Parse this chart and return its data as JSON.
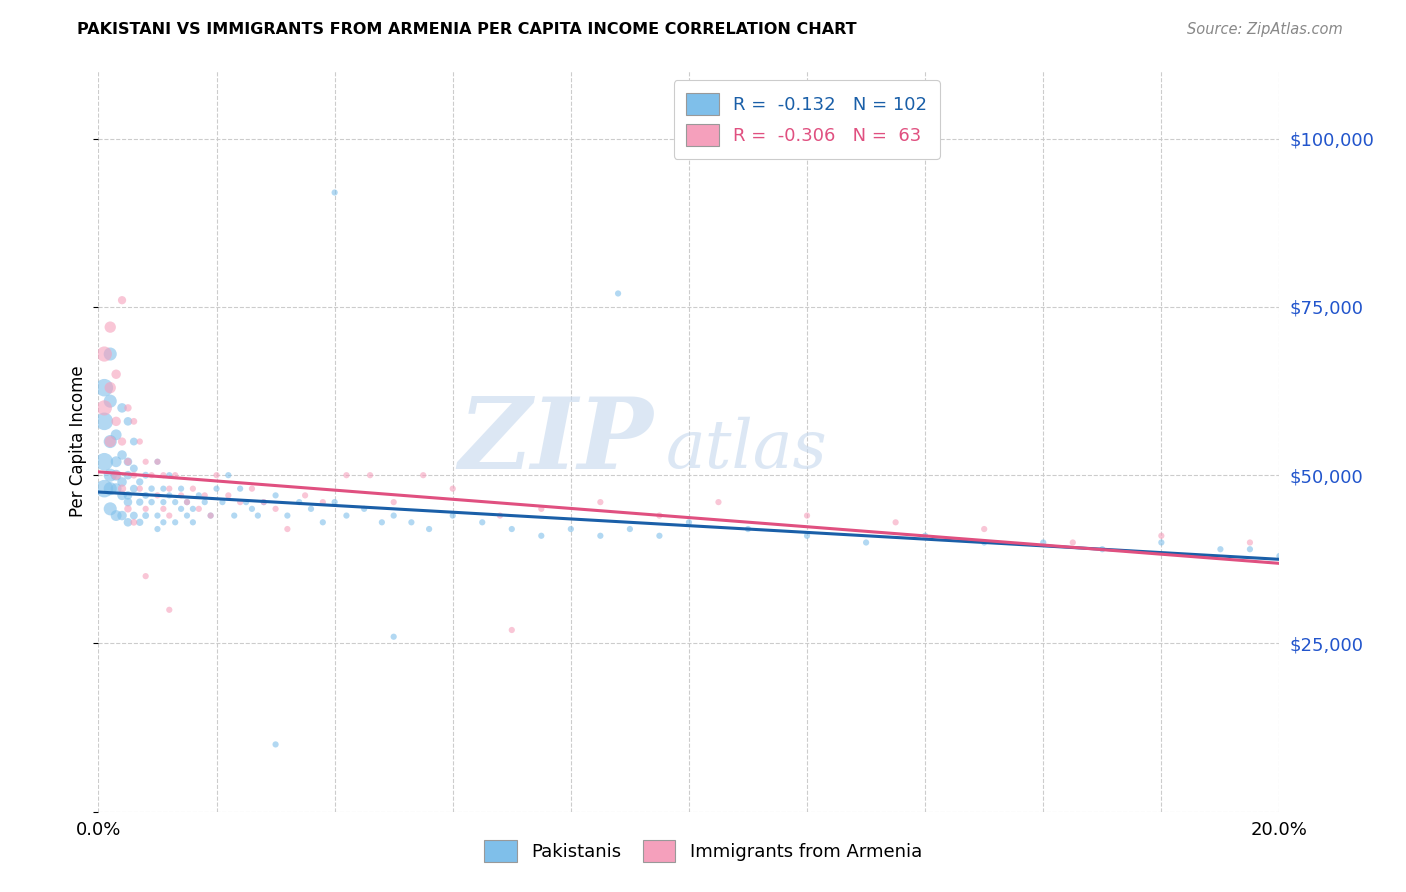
{
  "title": "PAKISTANI VS IMMIGRANTS FROM ARMENIA PER CAPITA INCOME CORRELATION CHART",
  "source": "Source: ZipAtlas.com",
  "ylabel": "Per Capita Income",
  "yticks": [
    0,
    25000,
    50000,
    75000,
    100000
  ],
  "ytick_labels": [
    "",
    "$25,000",
    "$50,000",
    "$75,000",
    "$100,000"
  ],
  "ylim": [
    0,
    110000
  ],
  "xlim": [
    0.0,
    0.2
  ],
  "color_blue": "#7fbfea",
  "color_pink": "#f5a0bc",
  "trendline_blue": "#1a5fa8",
  "trendline_pink": "#e05080",
  "watermark_zip": "ZIP",
  "watermark_atlas": "atlas",
  "R_pak": -0.132,
  "N_pak": 102,
  "R_arm": -0.306,
  "N_arm": 63,
  "pak_intercept": 47500,
  "pak_slope": -50000,
  "arm_intercept": 50500,
  "arm_slope": -68000,
  "pakistanis_x": [
    0.001,
    0.001,
    0.001,
    0.001,
    0.002,
    0.002,
    0.002,
    0.002,
    0.002,
    0.002,
    0.003,
    0.003,
    0.003,
    0.003,
    0.003,
    0.004,
    0.004,
    0.004,
    0.004,
    0.004,
    0.005,
    0.005,
    0.005,
    0.005,
    0.005,
    0.005,
    0.006,
    0.006,
    0.006,
    0.006,
    0.007,
    0.007,
    0.007,
    0.008,
    0.008,
    0.008,
    0.009,
    0.009,
    0.01,
    0.01,
    0.01,
    0.011,
    0.011,
    0.011,
    0.012,
    0.012,
    0.013,
    0.013,
    0.014,
    0.014,
    0.015,
    0.015,
    0.016,
    0.016,
    0.017,
    0.018,
    0.019,
    0.02,
    0.021,
    0.022,
    0.023,
    0.024,
    0.025,
    0.026,
    0.027,
    0.028,
    0.03,
    0.032,
    0.034,
    0.036,
    0.038,
    0.04,
    0.042,
    0.045,
    0.048,
    0.05,
    0.053,
    0.056,
    0.06,
    0.065,
    0.07,
    0.075,
    0.08,
    0.085,
    0.09,
    0.095,
    0.1,
    0.11,
    0.12,
    0.13,
    0.14,
    0.15,
    0.16,
    0.17,
    0.18,
    0.19,
    0.195,
    0.2,
    0.088,
    0.05,
    0.03,
    0.04
  ],
  "pakistanis_y": [
    52000,
    58000,
    63000,
    48000,
    55000,
    61000,
    48000,
    45000,
    50000,
    68000,
    52000,
    48000,
    56000,
    44000,
    50000,
    53000,
    60000,
    47000,
    44000,
    49000,
    46000,
    52000,
    43000,
    50000,
    47000,
    58000,
    48000,
    55000,
    44000,
    51000,
    49000,
    46000,
    43000,
    50000,
    47000,
    44000,
    48000,
    46000,
    52000,
    44000,
    42000,
    48000,
    46000,
    43000,
    50000,
    47000,
    46000,
    43000,
    48000,
    45000,
    46000,
    44000,
    45000,
    43000,
    47000,
    46000,
    44000,
    48000,
    46000,
    50000,
    44000,
    48000,
    46000,
    45000,
    44000,
    46000,
    47000,
    44000,
    46000,
    45000,
    43000,
    46000,
    44000,
    45000,
    43000,
    44000,
    43000,
    42000,
    44000,
    43000,
    42000,
    41000,
    42000,
    41000,
    42000,
    41000,
    43000,
    42000,
    41000,
    40000,
    41000,
    40000,
    40000,
    39000,
    40000,
    39000,
    39000,
    38000,
    77000,
    26000,
    10000,
    92000
  ],
  "armenians_x": [
    0.001,
    0.001,
    0.002,
    0.002,
    0.002,
    0.003,
    0.003,
    0.003,
    0.004,
    0.004,
    0.005,
    0.005,
    0.005,
    0.006,
    0.006,
    0.007,
    0.007,
    0.008,
    0.008,
    0.009,
    0.01,
    0.01,
    0.011,
    0.011,
    0.012,
    0.012,
    0.013,
    0.014,
    0.015,
    0.016,
    0.017,
    0.018,
    0.019,
    0.02,
    0.022,
    0.024,
    0.026,
    0.028,
    0.03,
    0.032,
    0.035,
    0.038,
    0.042,
    0.046,
    0.05,
    0.055,
    0.06,
    0.068,
    0.075,
    0.085,
    0.095,
    0.105,
    0.12,
    0.135,
    0.15,
    0.165,
    0.18,
    0.195,
    0.004,
    0.006,
    0.008,
    0.012,
    0.07
  ],
  "armenians_y": [
    60000,
    68000,
    72000,
    55000,
    63000,
    58000,
    50000,
    65000,
    55000,
    48000,
    60000,
    52000,
    45000,
    58000,
    50000,
    55000,
    48000,
    52000,
    45000,
    50000,
    52000,
    47000,
    50000,
    45000,
    48000,
    44000,
    50000,
    47000,
    46000,
    48000,
    45000,
    47000,
    44000,
    50000,
    47000,
    46000,
    48000,
    46000,
    45000,
    42000,
    47000,
    46000,
    50000,
    50000,
    46000,
    50000,
    48000,
    44000,
    45000,
    46000,
    44000,
    46000,
    44000,
    43000,
    42000,
    40000,
    41000,
    40000,
    76000,
    43000,
    35000,
    30000,
    27000
  ]
}
